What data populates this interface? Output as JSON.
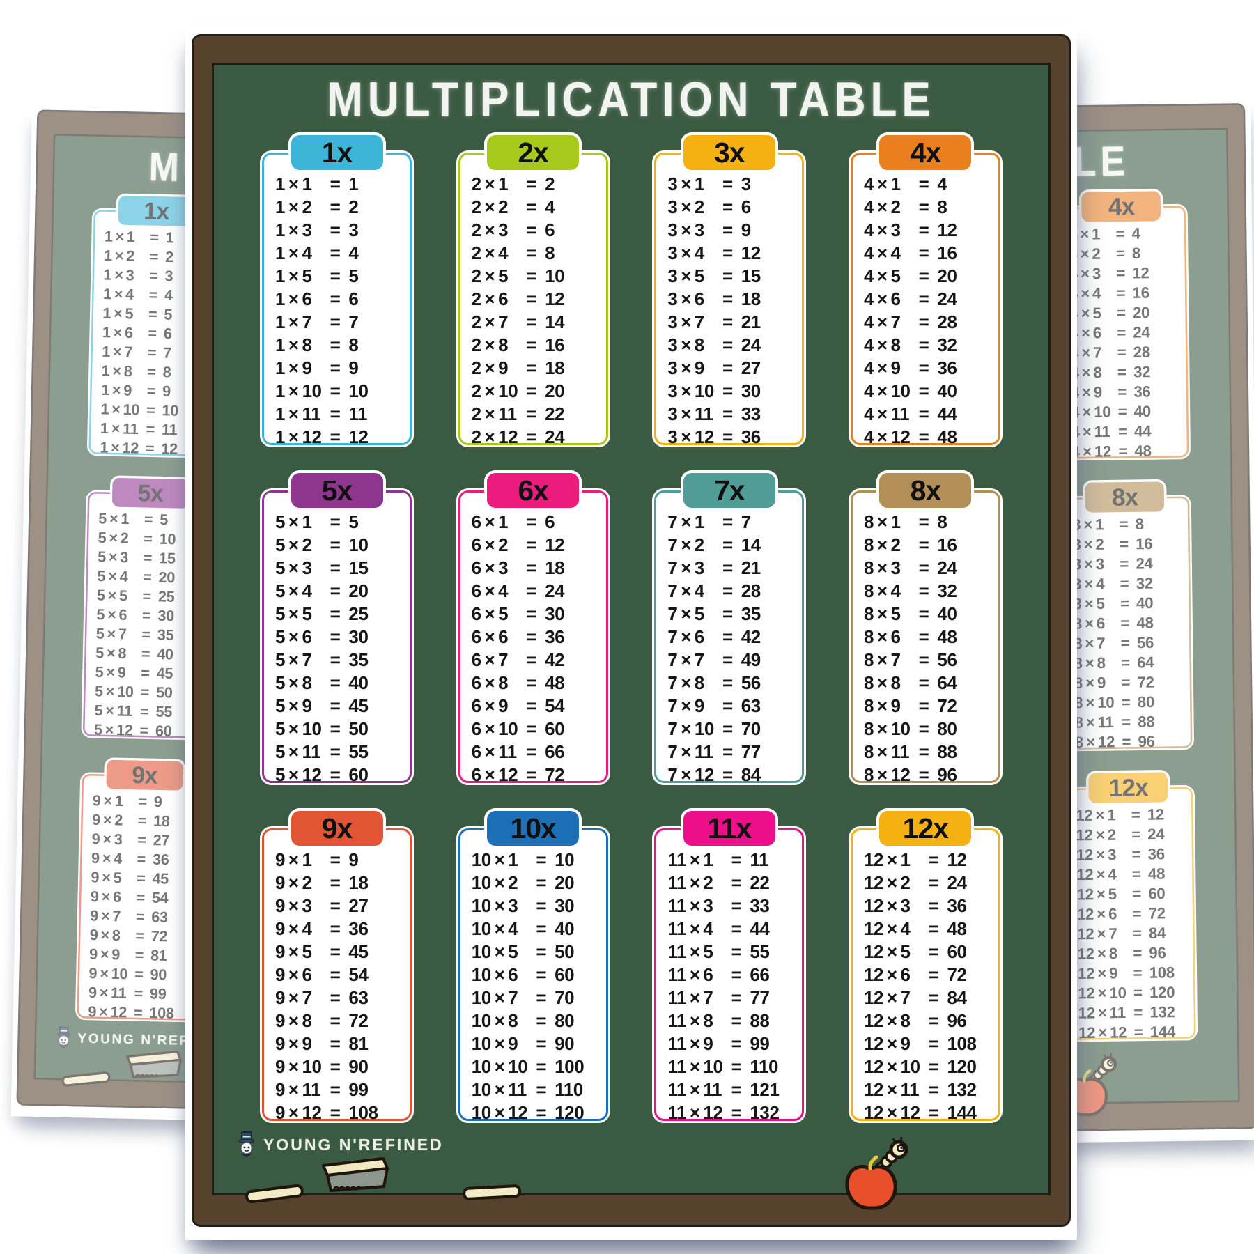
{
  "poster": {
    "title": "MULTIPLICATION TABLE",
    "brand": "YOUNG N'REFINED",
    "equals_sign": "=",
    "times_sign": "×",
    "board_color": "#3a5a41",
    "frame_color": "#57422e",
    "chalk_text_color": "#f2f5ef",
    "tables": [
      {
        "label": "1x",
        "color": "#3cb5d9",
        "rows": [
          [
            "1 × 1",
            "1"
          ],
          [
            "1 × 2",
            "2"
          ],
          [
            "1 × 3",
            "3"
          ],
          [
            "1 × 4",
            "4"
          ],
          [
            "1 × 5",
            "5"
          ],
          [
            "1 × 6",
            "6"
          ],
          [
            "1 × 7",
            "7"
          ],
          [
            "1 × 8",
            "8"
          ],
          [
            "1 × 9",
            "9"
          ],
          [
            "1 × 10",
            "10"
          ],
          [
            "1 × 11",
            "11"
          ],
          [
            "1 × 12",
            "12"
          ]
        ]
      },
      {
        "label": "2x",
        "color": "#a7c91c",
        "rows": [
          [
            "2 × 1",
            "2"
          ],
          [
            "2 × 2",
            "4"
          ],
          [
            "2 × 3",
            "6"
          ],
          [
            "2 × 4",
            "8"
          ],
          [
            "2 × 5",
            "10"
          ],
          [
            "2 × 6",
            "12"
          ],
          [
            "2 × 7",
            "14"
          ],
          [
            "2 × 8",
            "16"
          ],
          [
            "2 × 9",
            "18"
          ],
          [
            "2 × 10",
            "20"
          ],
          [
            "2 × 11",
            "22"
          ],
          [
            "2 × 12",
            "24"
          ]
        ]
      },
      {
        "label": "3x",
        "color": "#f5b011",
        "rows": [
          [
            "3 × 1",
            "3"
          ],
          [
            "3 × 2",
            "6"
          ],
          [
            "3 × 3",
            "9"
          ],
          [
            "3 × 4",
            "12"
          ],
          [
            "3 × 5",
            "15"
          ],
          [
            "3 × 6",
            "18"
          ],
          [
            "3 × 7",
            "21"
          ],
          [
            "3 × 8",
            "24"
          ],
          [
            "3 × 9",
            "27"
          ],
          [
            "3 × 10",
            "30"
          ],
          [
            "3 × 11",
            "33"
          ],
          [
            "3 × 12",
            "36"
          ]
        ]
      },
      {
        "label": "4x",
        "color": "#ea7f1f",
        "rows": [
          [
            "4 × 1",
            "4"
          ],
          [
            "4 × 2",
            "8"
          ],
          [
            "4 × 3",
            "12"
          ],
          [
            "4 × 4",
            "16"
          ],
          [
            "4 × 5",
            "20"
          ],
          [
            "4 × 6",
            "24"
          ],
          [
            "4 × 7",
            "28"
          ],
          [
            "4 × 8",
            "32"
          ],
          [
            "4 × 9",
            "36"
          ],
          [
            "4 × 10",
            "40"
          ],
          [
            "4 × 11",
            "44"
          ],
          [
            "4 × 12",
            "48"
          ]
        ]
      },
      {
        "label": "5x",
        "color": "#8f3590",
        "rows": [
          [
            "5 × 1",
            "5"
          ],
          [
            "5 × 2",
            "10"
          ],
          [
            "5 × 3",
            "15"
          ],
          [
            "5 × 4",
            "20"
          ],
          [
            "5 × 5",
            "25"
          ],
          [
            "5 × 6",
            "30"
          ],
          [
            "5 × 7",
            "35"
          ],
          [
            "5 × 8",
            "40"
          ],
          [
            "5 × 9",
            "45"
          ],
          [
            "5 × 10",
            "50"
          ],
          [
            "5 × 11",
            "55"
          ],
          [
            "5 × 12",
            "60"
          ]
        ]
      },
      {
        "label": "6x",
        "color": "#ec1c7f",
        "rows": [
          [
            "6 × 1",
            "6"
          ],
          [
            "6 × 2",
            "12"
          ],
          [
            "6 × 3",
            "18"
          ],
          [
            "6 × 4",
            "24"
          ],
          [
            "6 × 5",
            "30"
          ],
          [
            "6 × 6",
            "36"
          ],
          [
            "6 × 7",
            "42"
          ],
          [
            "6 × 8",
            "48"
          ],
          [
            "6 × 9",
            "54"
          ],
          [
            "6 × 10",
            "60"
          ],
          [
            "6 × 11",
            "66"
          ],
          [
            "6 × 12",
            "72"
          ]
        ]
      },
      {
        "label": "7x",
        "color": "#4f9d96",
        "rows": [
          [
            "7 × 1",
            "7"
          ],
          [
            "7 × 2",
            "14"
          ],
          [
            "7 × 3",
            "21"
          ],
          [
            "7 × 4",
            "28"
          ],
          [
            "7 × 5",
            "35"
          ],
          [
            "7 × 6",
            "42"
          ],
          [
            "7 × 7",
            "49"
          ],
          [
            "7 × 8",
            "56"
          ],
          [
            "7 × 9",
            "63"
          ],
          [
            "7 × 10",
            "70"
          ],
          [
            "7 × 11",
            "77"
          ],
          [
            "7 × 12",
            "84"
          ]
        ]
      },
      {
        "label": "8x",
        "color": "#b18f56",
        "rows": [
          [
            "8 × 1",
            "8"
          ],
          [
            "8 × 2",
            "16"
          ],
          [
            "8 × 3",
            "24"
          ],
          [
            "8 × 4",
            "32"
          ],
          [
            "8 × 5",
            "40"
          ],
          [
            "8 × 6",
            "48"
          ],
          [
            "8 × 7",
            "56"
          ],
          [
            "8 × 8",
            "64"
          ],
          [
            "8 × 9",
            "72"
          ],
          [
            "8 × 10",
            "80"
          ],
          [
            "8 × 11",
            "88"
          ],
          [
            "8 × 12",
            "96"
          ]
        ]
      },
      {
        "label": "9x",
        "color": "#e15434",
        "rows": [
          [
            "9 × 1",
            "9"
          ],
          [
            "9 × 2",
            "18"
          ],
          [
            "9 × 3",
            "27"
          ],
          [
            "9 × 4",
            "36"
          ],
          [
            "9 × 5",
            "45"
          ],
          [
            "9 × 6",
            "54"
          ],
          [
            "9 × 7",
            "63"
          ],
          [
            "9 × 8",
            "72"
          ],
          [
            "9 × 9",
            "81"
          ],
          [
            "9 × 10",
            "90"
          ],
          [
            "9 × 11",
            "99"
          ],
          [
            "9 × 12",
            "108"
          ]
        ]
      },
      {
        "label": "10x",
        "color": "#1d70b8",
        "rows": [
          [
            "10 × 1",
            "10"
          ],
          [
            "10 × 2",
            "20"
          ],
          [
            "10 × 3",
            "30"
          ],
          [
            "10 × 4",
            "40"
          ],
          [
            "10 × 5",
            "50"
          ],
          [
            "10 × 6",
            "60"
          ],
          [
            "10 × 7",
            "70"
          ],
          [
            "10 × 8",
            "80"
          ],
          [
            "10 × 9",
            "90"
          ],
          [
            "10 × 10",
            "100"
          ],
          [
            "10 × 11",
            "110"
          ],
          [
            "10 × 12",
            "120"
          ]
        ]
      },
      {
        "label": "11x",
        "color": "#ed0e8a",
        "rows": [
          [
            "11 × 1",
            "11"
          ],
          [
            "11 × 2",
            "22"
          ],
          [
            "11 × 3",
            "33"
          ],
          [
            "11 × 4",
            "44"
          ],
          [
            "11 × 5",
            "55"
          ],
          [
            "11 × 6",
            "66"
          ],
          [
            "11 × 7",
            "77"
          ],
          [
            "11 × 8",
            "88"
          ],
          [
            "11 × 9",
            "99"
          ],
          [
            "11 × 10",
            "110"
          ],
          [
            "11 × 11",
            "121"
          ],
          [
            "11 × 12",
            "132"
          ]
        ]
      },
      {
        "label": "12x",
        "color": "#f5b011",
        "rows": [
          [
            "12 × 1",
            "12"
          ],
          [
            "12 × 2",
            "24"
          ],
          [
            "12 × 3",
            "36"
          ],
          [
            "12 × 4",
            "48"
          ],
          [
            "12 × 5",
            "60"
          ],
          [
            "12 × 6",
            "72"
          ],
          [
            "12 × 7",
            "84"
          ],
          [
            "12 × 8",
            "96"
          ],
          [
            "12 × 9",
            "108"
          ],
          [
            "12 × 10",
            "120"
          ],
          [
            "12 × 11",
            "132"
          ],
          [
            "12 × 12",
            "144"
          ]
        ]
      }
    ]
  }
}
